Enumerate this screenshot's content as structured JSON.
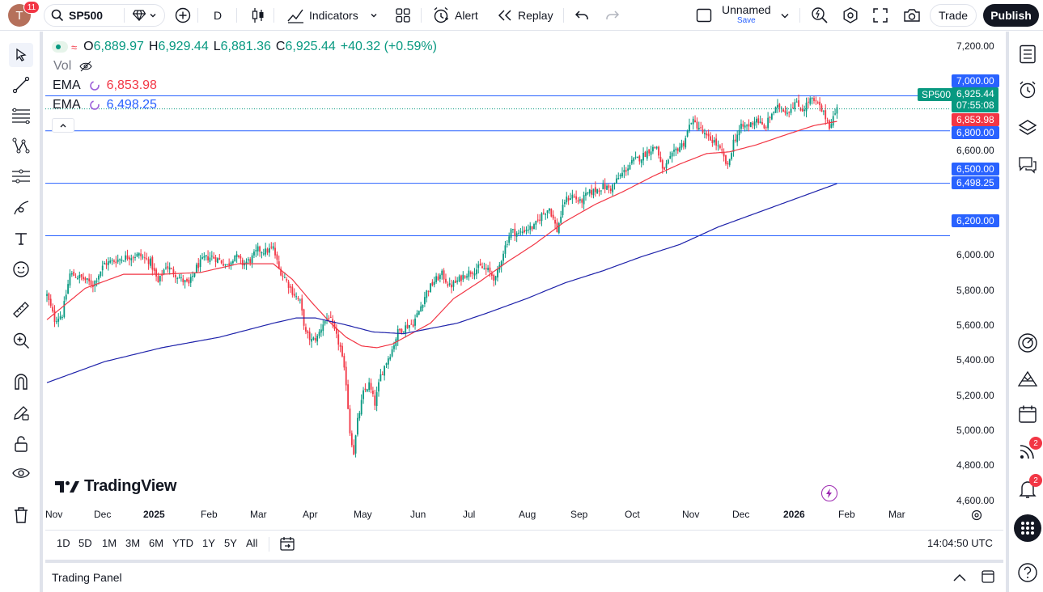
{
  "top_toolbar": {
    "notification_count": "11",
    "avatar_letter": "T",
    "symbol": "SP500",
    "interval": "D",
    "indicators_label": "Indicators",
    "alert_label": "Alert",
    "replay_label": "Replay",
    "layout_name": "Unnamed",
    "layout_save": "Save",
    "trade_label": "Trade",
    "publish_label": "Publish"
  },
  "legend": {
    "open_label": "O",
    "open": "6,889.97",
    "high_label": "H",
    "high": "6,929.44",
    "low_label": "L",
    "low": "6,881.36",
    "close_label": "C",
    "close": "6,925.44",
    "change": "+40.32 (+0.59%)",
    "volume_label": "Vol",
    "ema1_label": "EMA",
    "ema1_value": "6,853.98",
    "ema2_label": "EMA",
    "ema2_value": "6,498.25"
  },
  "price_axis": {
    "ticks": [
      "7,200.00",
      "6,600.00",
      "6,000.00",
      "5,800.00",
      "5,600.00",
      "5,400.00",
      "5,200.00",
      "5,000.00",
      "4,800.00",
      "4,600.00"
    ],
    "hline_labels": [
      "7,000.00",
      "6,800.00",
      "6,500.00",
      "6,200.00"
    ],
    "symbol_tag": "SP500",
    "last_price": "6,925.44",
    "countdown": "07:55:08",
    "ema1_tag": "6,853.98",
    "ema2_tag": "6,498.25"
  },
  "time_axis": {
    "labels": [
      "Nov",
      "Dec",
      "2025",
      "Feb",
      "Mar",
      "Apr",
      "May",
      "Jun",
      "Jul",
      "Aug",
      "Sep",
      "Oct",
      "Nov",
      "Dec",
      "2026",
      "Feb",
      "Mar"
    ]
  },
  "watermark": "TradingView",
  "range_bar": {
    "ranges": [
      "1D",
      "5D",
      "1M",
      "3M",
      "6M",
      "YTD",
      "1Y",
      "5Y",
      "All"
    ],
    "clock": "14:04:50 UTC"
  },
  "trading_panel": {
    "label": "Trading Panel"
  },
  "right_toolbar": {
    "alerts_badge": "2",
    "notifications_badge": "2"
  },
  "colors": {
    "up": "#089981",
    "down": "#f23645",
    "ema_fast": "#f23645",
    "ema_slow": "#2962ff",
    "hline": "#2962ff",
    "ema_slow_line": "#1e22aa"
  },
  "chart_data": {
    "type": "candlestick",
    "symbol": "SP500",
    "interval": "D",
    "ylim": [
      4550,
      7270
    ],
    "x_labels": [
      "Nov",
      "Dec",
      "2025",
      "Feb",
      "Mar",
      "Apr",
      "May",
      "Jun",
      "Jul",
      "Aug",
      "Sep",
      "Oct",
      "Nov",
      "Dec",
      "2026",
      "Feb",
      "Mar"
    ],
    "horizontal_lines": [
      7000,
      6800,
      6500,
      6200
    ],
    "close_path": [
      [
        0,
        5860
      ],
      [
        4,
        5720
      ],
      [
        8,
        5750
      ],
      [
        12,
        5980
      ],
      [
        18,
        5960
      ],
      [
        24,
        5920
      ],
      [
        30,
        6040
      ],
      [
        36,
        6060
      ],
      [
        42,
        6080
      ],
      [
        48,
        6090
      ],
      [
        54,
        6050
      ],
      [
        58,
        5930
      ],
      [
        62,
        6030
      ],
      [
        66,
        5990
      ],
      [
        70,
        5950
      ],
      [
        74,
        5920
      ],
      [
        78,
        6020
      ],
      [
        82,
        6070
      ],
      [
        86,
        6080
      ],
      [
        90,
        6060
      ],
      [
        94,
        6030
      ],
      [
        98,
        6090
      ],
      [
        102,
        6040
      ],
      [
        106,
        6060
      ],
      [
        110,
        6120
      ],
      [
        114,
        6110
      ],
      [
        118,
        6130
      ],
      [
        121,
        6010
      ],
      [
        124,
        5960
      ],
      [
        128,
        5880
      ],
      [
        132,
        5820
      ],
      [
        135,
        5640
      ],
      [
        138,
        5600
      ],
      [
        141,
        5620
      ],
      [
        144,
        5700
      ],
      [
        147,
        5740
      ],
      [
        150,
        5650
      ],
      [
        153,
        5560
      ],
      [
        156,
        5360
      ],
      [
        158,
        5080
      ],
      [
        160,
        4960
      ],
      [
        162,
        5140
      ],
      [
        165,
        5300
      ],
      [
        168,
        5350
      ],
      [
        171,
        5240
      ],
      [
        174,
        5400
      ],
      [
        177,
        5480
      ],
      [
        180,
        5550
      ],
      [
        183,
        5650
      ],
      [
        187,
        5680
      ],
      [
        191,
        5700
      ],
      [
        194,
        5770
      ],
      [
        198,
        5880
      ],
      [
        202,
        5940
      ],
      [
        206,
        5980
      ],
      [
        210,
        5910
      ],
      [
        214,
        5940
      ],
      [
        218,
        5980
      ],
      [
        222,
        6000
      ],
      [
        226,
        6020
      ],
      [
        230,
        6000
      ],
      [
        234,
        5950
      ],
      [
        238,
        6110
      ],
      [
        242,
        6230
      ],
      [
        246,
        6210
      ],
      [
        250,
        6240
      ],
      [
        254,
        6250
      ],
      [
        258,
        6320
      ],
      [
        262,
        6360
      ],
      [
        266,
        6230
      ],
      [
        270,
        6400
      ],
      [
        274,
        6430
      ],
      [
        278,
        6390
      ],
      [
        282,
        6440
      ],
      [
        286,
        6460
      ],
      [
        290,
        6480
      ],
      [
        294,
        6470
      ],
      [
        298,
        6530
      ],
      [
        302,
        6580
      ],
      [
        306,
        6630
      ],
      [
        310,
        6650
      ],
      [
        314,
        6690
      ],
      [
        318,
        6710
      ],
      [
        321,
        6570
      ],
      [
        324,
        6620
      ],
      [
        328,
        6690
      ],
      [
        332,
        6730
      ],
      [
        336,
        6860
      ],
      [
        340,
        6820
      ],
      [
        344,
        6760
      ],
      [
        348,
        6740
      ],
      [
        352,
        6670
      ],
      [
        355,
        6590
      ],
      [
        358,
        6740
      ],
      [
        362,
        6820
      ],
      [
        366,
        6830
      ],
      [
        370,
        6870
      ],
      [
        374,
        6810
      ],
      [
        378,
        6900
      ],
      [
        382,
        6940
      ],
      [
        386,
        6910
      ],
      [
        390,
        6960
      ],
      [
        394,
        6920
      ],
      [
        398,
        6980
      ],
      [
        402,
        6950
      ],
      [
        406,
        6880
      ],
      [
        408,
        6830
      ],
      [
        412,
        6925
      ]
    ],
    "ema_fast_path": [
      [
        0,
        5720
      ],
      [
        20,
        5900
      ],
      [
        40,
        5980
      ],
      [
        60,
        5980
      ],
      [
        80,
        5990
      ],
      [
        100,
        6040
      ],
      [
        118,
        6040
      ],
      [
        128,
        5950
      ],
      [
        138,
        5820
      ],
      [
        148,
        5700
      ],
      [
        156,
        5620
      ],
      [
        164,
        5570
      ],
      [
        172,
        5560
      ],
      [
        180,
        5580
      ],
      [
        190,
        5640
      ],
      [
        200,
        5700
      ],
      [
        212,
        5840
      ],
      [
        226,
        5940
      ],
      [
        240,
        6050
      ],
      [
        254,
        6150
      ],
      [
        270,
        6280
      ],
      [
        286,
        6380
      ],
      [
        300,
        6450
      ],
      [
        316,
        6540
      ],
      [
        330,
        6610
      ],
      [
        344,
        6670
      ],
      [
        356,
        6680
      ],
      [
        370,
        6720
      ],
      [
        386,
        6780
      ],
      [
        400,
        6830
      ],
      [
        412,
        6854
      ]
    ],
    "ema_slow_path": [
      [
        0,
        5360
      ],
      [
        30,
        5480
      ],
      [
        60,
        5560
      ],
      [
        90,
        5620
      ],
      [
        118,
        5700
      ],
      [
        130,
        5730
      ],
      [
        140,
        5730
      ],
      [
        156,
        5690
      ],
      [
        170,
        5650
      ],
      [
        186,
        5640
      ],
      [
        200,
        5670
      ],
      [
        214,
        5700
      ],
      [
        230,
        5760
      ],
      [
        250,
        5840
      ],
      [
        270,
        5930
      ],
      [
        290,
        6000
      ],
      [
        310,
        6080
      ],
      [
        330,
        6150
      ],
      [
        350,
        6250
      ],
      [
        370,
        6330
      ],
      [
        390,
        6410
      ],
      [
        412,
        6498
      ]
    ]
  }
}
